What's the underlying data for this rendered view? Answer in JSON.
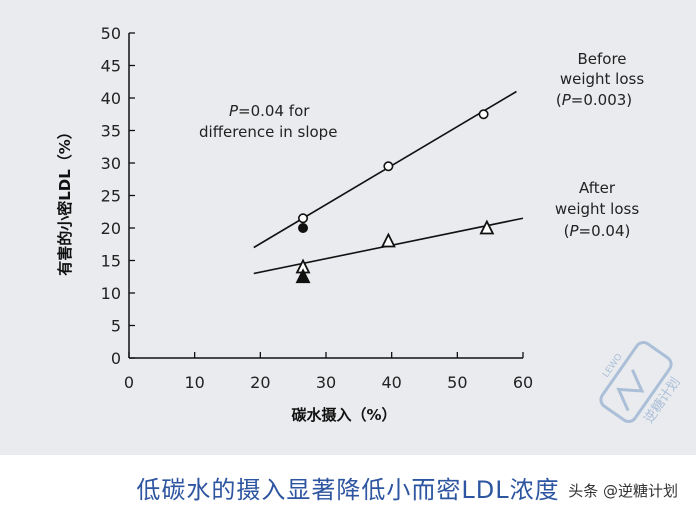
{
  "chart_data": {
    "type": "scatter",
    "ylabel": "有害的小密LDL（%）",
    "xlabel": "碳水摄入（%）",
    "xlim": [
      0,
      60
    ],
    "ylim": [
      0,
      50
    ],
    "x_ticks": [
      0,
      10,
      20,
      30,
      40,
      50,
      60
    ],
    "y_ticks": [
      0,
      5,
      10,
      15,
      20,
      25,
      30,
      35,
      40,
      45,
      50
    ],
    "grid": false,
    "series": [
      {
        "label_line1": "Before",
        "label_line2": "weight loss",
        "label_line3_italic": "P",
        "label_line3_rest": "=0.003)",
        "label_line3_prefix": "(",
        "marker": "circle-open",
        "points": [
          [
            26.5,
            21.5
          ],
          [
            39.5,
            29.5
          ],
          [
            54,
            37.5
          ]
        ],
        "baseline_marker": "circle-filled",
        "baseline_point": [
          26.5,
          20
        ],
        "fit_line": [
          [
            19,
            17
          ],
          [
            59,
            41
          ]
        ]
      },
      {
        "label_line1": "After",
        "label_line2": "weight loss",
        "label_line3_italic": "P",
        "label_line3_rest": "=0.04)",
        "label_line3_prefix": "(",
        "marker": "triangle-open",
        "points": [
          [
            26.5,
            14
          ],
          [
            39.5,
            18
          ],
          [
            54.5,
            20
          ]
        ],
        "baseline_marker": "triangle-filled",
        "baseline_point": [
          26.5,
          12.5
        ],
        "fit_line": [
          [
            19,
            13
          ],
          [
            60,
            21.5
          ]
        ]
      }
    ],
    "annotation": {
      "italic": "P",
      "rest": "=0.04 for",
      "line2": "difference in slope"
    }
  },
  "caption": "低碳水的摄入显著降低小而密LDL浓度",
  "watermark": "头条 @逆糖计划",
  "logo_text": "逆糖计划",
  "logo_brand": "LEWO"
}
